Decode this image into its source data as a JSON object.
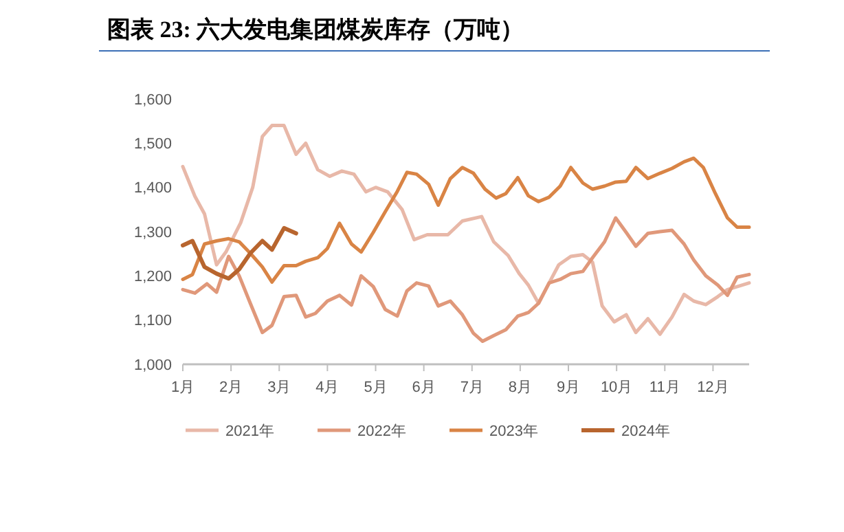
{
  "chart_data": {
    "type": "line",
    "title": "图表 23:  六大发电集团煤炭库存（万吨）",
    "xlim": [
      1,
      12.75
    ],
    "xticks": [
      {
        "value": 1,
        "label": "1月"
      },
      {
        "value": 2,
        "label": "2月"
      },
      {
        "value": 3,
        "label": "3月"
      },
      {
        "value": 4,
        "label": "4月"
      },
      {
        "value": 5,
        "label": "5月"
      },
      {
        "value": 6,
        "label": "6月"
      },
      {
        "value": 7,
        "label": "7月"
      },
      {
        "value": 8,
        "label": "8月"
      },
      {
        "value": 9,
        "label": "9月"
      },
      {
        "value": 10,
        "label": "10月"
      },
      {
        "value": 11,
        "label": "11月"
      },
      {
        "value": 12,
        "label": "12月"
      }
    ],
    "ylim": [
      1000,
      1600
    ],
    "yticks": [
      {
        "value": 1000,
        "label": "1,000"
      },
      {
        "value": 1100,
        "label": "1,100"
      },
      {
        "value": 1200,
        "label": "1,200"
      },
      {
        "value": 1300,
        "label": "1,300"
      },
      {
        "value": 1400,
        "label": "1,400"
      },
      {
        "value": 1500,
        "label": "1,500"
      },
      {
        "value": 1600,
        "label": "1,600"
      }
    ],
    "grid": false,
    "legend": "bottom",
    "marker": "none",
    "line_style": "solid",
    "series": [
      {
        "name": "2021年",
        "color": "#e8b8a8",
        "x": [
          1,
          1.25,
          1.45,
          1.7,
          1.9,
          2.2,
          2.45,
          2.65,
          2.85,
          3.1,
          3.35,
          3.55,
          3.8,
          4.05,
          4.3,
          4.55,
          4.8,
          5,
          5.25,
          5.55,
          5.8,
          6.07,
          6.5,
          6.8,
          7.2,
          7.45,
          7.75,
          7.98,
          8.17,
          8.38,
          8.6,
          8.8,
          9.05,
          9.3,
          9.5,
          9.7,
          9.95,
          10.2,
          10.4,
          10.65,
          10.9,
          11.15,
          11.4,
          11.6,
          11.85,
          12.1,
          12.3,
          12.75
        ],
        "values": [
          1447,
          1380,
          1340,
          1225,
          1255,
          1320,
          1400,
          1515,
          1540,
          1540,
          1475,
          1500,
          1440,
          1425,
          1437,
          1430,
          1390,
          1400,
          1390,
          1350,
          1282,
          1293,
          1293,
          1324,
          1334,
          1277,
          1246,
          1205,
          1179,
          1138,
          1184,
          1225,
          1244,
          1248,
          1231,
          1132,
          1096,
          1112,
          1072,
          1103,
          1068,
          1107,
          1158,
          1143,
          1135,
          1153,
          1169,
          1184
        ]
      },
      {
        "name": "2022年",
        "color": "#e0987a",
        "x": [
          1,
          1.25,
          1.5,
          1.7,
          1.95,
          2.17,
          2.4,
          2.65,
          2.85,
          3.1,
          3.35,
          3.55,
          3.75,
          4,
          4.25,
          4.5,
          4.7,
          4.95,
          5.2,
          5.45,
          5.65,
          5.85,
          6.1,
          6.3,
          6.55,
          6.8,
          7.03,
          7.22,
          7.45,
          7.7,
          7.95,
          8.17,
          8.38,
          8.6,
          8.83,
          9.05,
          9.3,
          9.5,
          9.75,
          9.98,
          10.2,
          10.4,
          10.65,
          10.9,
          11.15,
          11.4,
          11.6,
          11.85,
          12.1,
          12.3,
          12.5,
          12.75
        ],
        "values": [
          1169,
          1161,
          1182,
          1163,
          1244,
          1200,
          1138,
          1072,
          1088,
          1153,
          1156,
          1107,
          1115,
          1143,
          1156,
          1134,
          1200,
          1176,
          1124,
          1109,
          1166,
          1184,
          1177,
          1132,
          1143,
          1112,
          1070,
          1052,
          1065,
          1078,
          1109,
          1117,
          1138,
          1184,
          1192,
          1205,
          1210,
          1241,
          1277,
          1331,
          1298,
          1267,
          1296,
          1300,
          1303,
          1272,
          1236,
          1200,
          1179,
          1156,
          1197,
          1203
        ]
      },
      {
        "name": "2023年",
        "color": "#d98445",
        "x": [
          1,
          1.2,
          1.45,
          1.7,
          1.95,
          2.17,
          2.4,
          2.65,
          2.85,
          3.1,
          3.35,
          3.55,
          3.8,
          4,
          4.25,
          4.5,
          4.7,
          4.95,
          5.2,
          5.45,
          5.65,
          5.85,
          6.1,
          6.3,
          6.55,
          6.8,
          7.03,
          7.27,
          7.5,
          7.7,
          7.95,
          8.17,
          8.38,
          8.6,
          8.83,
          9.05,
          9.3,
          9.5,
          9.75,
          9.98,
          10.2,
          10.4,
          10.65,
          10.9,
          11.15,
          11.4,
          11.6,
          11.8,
          12.05,
          12.3,
          12.5,
          12.75
        ],
        "values": [
          1192,
          1203,
          1272,
          1279,
          1284,
          1277,
          1251,
          1220,
          1186,
          1223,
          1223,
          1233,
          1241,
          1262,
          1319,
          1272,
          1254,
          1298,
          1345,
          1391,
          1434,
          1430,
          1407,
          1360,
          1420,
          1445,
          1432,
          1396,
          1376,
          1386,
          1422,
          1381,
          1368,
          1378,
          1403,
          1445,
          1410,
          1396,
          1403,
          1412,
          1414,
          1445,
          1420,
          1432,
          1443,
          1458,
          1466,
          1445,
          1386,
          1331,
          1310,
          1310
        ]
      },
      {
        "name": "2024年",
        "color": "#b8652e",
        "x": [
          1,
          1.2,
          1.45,
          1.7,
          1.95,
          2.17,
          2.4,
          2.65,
          2.85,
          3.1,
          3.35
        ],
        "values": [
          1269,
          1279,
          1220,
          1205,
          1194,
          1215,
          1251,
          1279,
          1259,
          1308,
          1296
        ]
      }
    ]
  }
}
